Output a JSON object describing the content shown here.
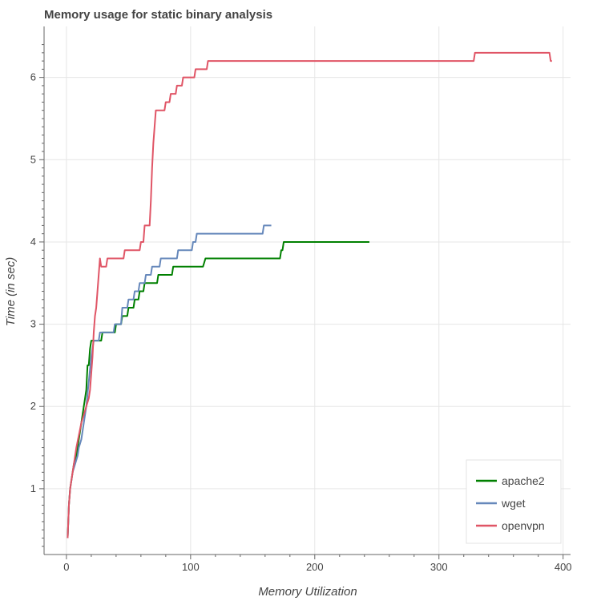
{
  "chart_data": {
    "type": "line",
    "title": "Memory usage for static binary analysis",
    "xlabel": "Memory Utilization",
    "ylabel": "Time (in sec)",
    "xlim": [
      -18,
      406
    ],
    "ylim": [
      0.2,
      6.62
    ],
    "xticks": [
      0,
      100,
      200,
      300,
      400
    ],
    "yticks": [
      1,
      2,
      3,
      4,
      5,
      6
    ],
    "xtick_labels": [
      "0",
      "100",
      "200",
      "300",
      "400"
    ],
    "ytick_labels": [
      "1",
      "2",
      "3",
      "4",
      "5",
      "6"
    ],
    "grid": true,
    "legend_position": "bottom-right",
    "series": [
      {
        "name": "apache2",
        "color": "#008000",
        "x": [
          1,
          2,
          3,
          4,
          6,
          8,
          9,
          10,
          12,
          14,
          15,
          16,
          17,
          18,
          19,
          20,
          21,
          23,
          25,
          28,
          29,
          30,
          39,
          40,
          44,
          45,
          49,
          50,
          54,
          55,
          58,
          59,
          62,
          63,
          66,
          67,
          73,
          74,
          85,
          86,
          110,
          112,
          172,
          173,
          174,
          175,
          244
        ],
        "y": [
          0.4,
          0.8,
          1.0,
          1.1,
          1.3,
          1.4,
          1.5,
          1.6,
          1.8,
          2.0,
          2.1,
          2.2,
          2.5,
          2.5,
          2.7,
          2.8,
          2.8,
          2.8,
          2.8,
          2.8,
          2.9,
          2.9,
          2.9,
          3.0,
          3.0,
          3.1,
          3.1,
          3.2,
          3.2,
          3.3,
          3.3,
          3.4,
          3.4,
          3.5,
          3.5,
          3.5,
          3.5,
          3.6,
          3.6,
          3.7,
          3.7,
          3.8,
          3.8,
          3.9,
          3.9,
          4.0,
          4.0
        ]
      },
      {
        "name": "wget",
        "color": "#6688bb",
        "x": [
          1,
          2,
          3,
          5,
          7,
          9,
          10,
          12,
          14,
          16,
          18,
          20,
          22,
          24,
          26,
          27,
          38,
          39,
          44,
          45,
          49,
          50,
          54,
          55,
          58,
          59,
          63,
          64,
          68,
          69,
          75,
          76,
          89,
          90,
          101,
          102,
          104,
          105,
          158,
          159,
          165
        ],
        "y": [
          0.4,
          0.8,
          1.0,
          1.2,
          1.3,
          1.4,
          1.5,
          1.6,
          1.8,
          2.0,
          2.3,
          2.6,
          2.8,
          2.8,
          2.8,
          2.9,
          2.9,
          3.0,
          3.0,
          3.2,
          3.2,
          3.3,
          3.3,
          3.4,
          3.4,
          3.5,
          3.5,
          3.6,
          3.6,
          3.7,
          3.7,
          3.8,
          3.8,
          3.9,
          3.9,
          4.0,
          4.0,
          4.1,
          4.1,
          4.2,
          4.2
        ]
      },
      {
        "name": "openvpn",
        "color": "#e05566",
        "x": [
          1,
          2,
          3,
          5,
          8,
          12,
          16,
          18,
          19,
          20,
          21,
          22,
          23,
          24,
          25,
          26,
          27,
          28,
          29,
          31,
          32,
          33,
          34,
          36,
          39,
          42,
          46,
          47,
          49,
          54,
          59,
          60,
          62,
          63,
          64,
          65,
          67,
          68,
          69,
          70,
          71,
          72,
          73,
          74,
          76,
          79,
          80,
          83,
          84,
          88,
          89,
          93,
          94,
          97,
          98,
          103,
          104,
          110,
          111,
          113,
          114,
          328,
          329,
          389,
          390,
          391
        ],
        "y": [
          0.4,
          0.8,
          1.0,
          1.2,
          1.5,
          1.8,
          2.0,
          2.1,
          2.2,
          2.4,
          2.6,
          2.9,
          3.1,
          3.2,
          3.4,
          3.6,
          3.8,
          3.7,
          3.7,
          3.7,
          3.7,
          3.8,
          3.8,
          3.8,
          3.8,
          3.8,
          3.8,
          3.9,
          3.9,
          3.9,
          3.9,
          4.0,
          4.0,
          4.2,
          4.2,
          4.2,
          4.2,
          4.5,
          4.9,
          5.2,
          5.4,
          5.6,
          5.6,
          5.6,
          5.6,
          5.6,
          5.7,
          5.7,
          5.8,
          5.8,
          5.9,
          5.9,
          6.0,
          6.0,
          6.0,
          6.0,
          6.1,
          6.1,
          6.1,
          6.1,
          6.2,
          6.2,
          6.3,
          6.3,
          6.2,
          6.2
        ]
      }
    ]
  }
}
